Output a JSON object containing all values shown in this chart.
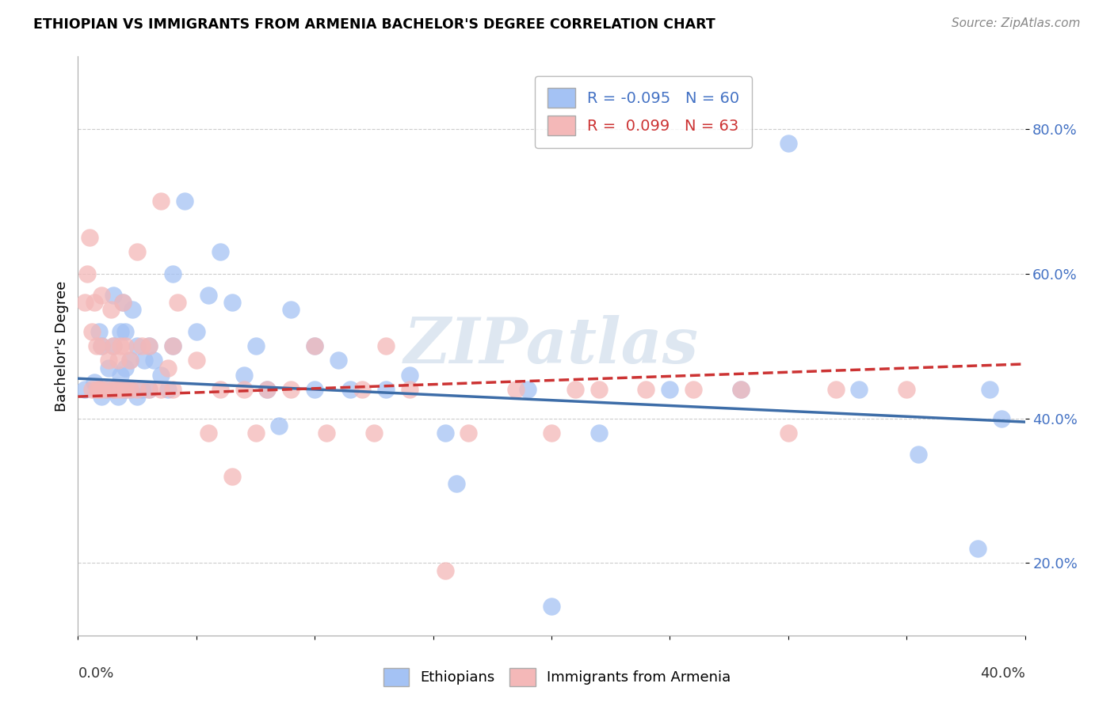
{
  "title": "ETHIOPIAN VS IMMIGRANTS FROM ARMENIA BACHELOR'S DEGREE CORRELATION CHART",
  "source": "Source: ZipAtlas.com",
  "ylabel": "Bachelor's Degree",
  "yaxis_ticks": [
    0.2,
    0.4,
    0.6,
    0.8
  ],
  "yaxis_labels": [
    "20.0%",
    "40.0%",
    "60.0%",
    "80.0%"
  ],
  "xlim": [
    0.0,
    0.4
  ],
  "ylim": [
    0.1,
    0.9
  ],
  "blue_R": "-0.095",
  "blue_N": "60",
  "pink_R": "0.099",
  "pink_N": "63",
  "blue_color": "#a4c2f4",
  "pink_color": "#f4b8b8",
  "blue_line_color": "#3d6da8",
  "pink_line_color": "#cc3333",
  "blue_line_x0": 0.0,
  "blue_line_y0": 0.455,
  "blue_line_x1": 0.4,
  "blue_line_y1": 0.395,
  "pink_line_x0": 0.0,
  "pink_line_y0": 0.43,
  "pink_line_x1": 0.4,
  "pink_line_y1": 0.475,
  "blue_points_x": [
    0.003,
    0.007,
    0.009,
    0.01,
    0.01,
    0.012,
    0.013,
    0.015,
    0.015,
    0.015,
    0.017,
    0.018,
    0.018,
    0.019,
    0.02,
    0.02,
    0.02,
    0.022,
    0.022,
    0.023,
    0.025,
    0.025,
    0.027,
    0.028,
    0.03,
    0.03,
    0.032,
    0.035,
    0.038,
    0.04,
    0.04,
    0.045,
    0.05,
    0.055,
    0.06,
    0.065,
    0.07,
    0.075,
    0.08,
    0.085,
    0.09,
    0.1,
    0.1,
    0.11,
    0.115,
    0.13,
    0.14,
    0.155,
    0.16,
    0.19,
    0.2,
    0.22,
    0.25,
    0.28,
    0.3,
    0.33,
    0.355,
    0.38,
    0.385,
    0.39
  ],
  "blue_points_y": [
    0.44,
    0.45,
    0.52,
    0.43,
    0.5,
    0.44,
    0.47,
    0.44,
    0.5,
    0.57,
    0.43,
    0.46,
    0.52,
    0.56,
    0.44,
    0.47,
    0.52,
    0.44,
    0.48,
    0.55,
    0.43,
    0.5,
    0.44,
    0.48,
    0.44,
    0.5,
    0.48,
    0.46,
    0.44,
    0.5,
    0.6,
    0.7,
    0.52,
    0.57,
    0.63,
    0.56,
    0.46,
    0.5,
    0.44,
    0.39,
    0.55,
    0.44,
    0.5,
    0.48,
    0.44,
    0.44,
    0.46,
    0.38,
    0.31,
    0.44,
    0.14,
    0.38,
    0.44,
    0.44,
    0.78,
    0.44,
    0.35,
    0.22,
    0.44,
    0.4
  ],
  "pink_points_x": [
    0.003,
    0.004,
    0.005,
    0.006,
    0.006,
    0.007,
    0.008,
    0.008,
    0.009,
    0.01,
    0.01,
    0.01,
    0.012,
    0.013,
    0.014,
    0.015,
    0.015,
    0.016,
    0.017,
    0.018,
    0.018,
    0.019,
    0.02,
    0.02,
    0.022,
    0.022,
    0.025,
    0.025,
    0.027,
    0.03,
    0.03,
    0.035,
    0.035,
    0.038,
    0.04,
    0.04,
    0.042,
    0.05,
    0.055,
    0.06,
    0.065,
    0.07,
    0.075,
    0.08,
    0.09,
    0.1,
    0.105,
    0.12,
    0.125,
    0.13,
    0.14,
    0.155,
    0.165,
    0.185,
    0.2,
    0.21,
    0.22,
    0.24,
    0.26,
    0.28,
    0.3,
    0.32,
    0.35
  ],
  "pink_points_y": [
    0.56,
    0.6,
    0.65,
    0.44,
    0.52,
    0.56,
    0.44,
    0.5,
    0.44,
    0.44,
    0.5,
    0.57,
    0.44,
    0.48,
    0.55,
    0.44,
    0.5,
    0.44,
    0.48,
    0.44,
    0.5,
    0.56,
    0.44,
    0.5,
    0.44,
    0.48,
    0.44,
    0.63,
    0.5,
    0.44,
    0.5,
    0.44,
    0.7,
    0.47,
    0.44,
    0.5,
    0.56,
    0.48,
    0.38,
    0.44,
    0.32,
    0.44,
    0.38,
    0.44,
    0.44,
    0.5,
    0.38,
    0.44,
    0.38,
    0.5,
    0.44,
    0.19,
    0.38,
    0.44,
    0.38,
    0.44,
    0.44,
    0.44,
    0.44,
    0.44,
    0.38,
    0.44,
    0.44
  ]
}
